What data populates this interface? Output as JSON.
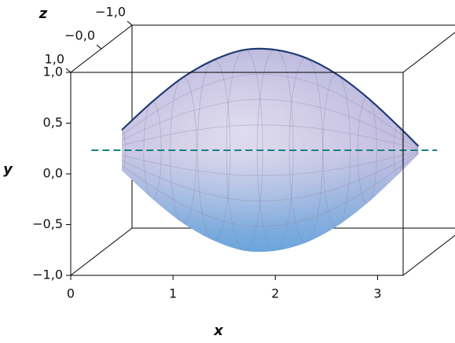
{
  "chart_data": {
    "type": "surface",
    "x_label": "x",
    "y_label": "y",
    "z_label": "z",
    "x": [
      0.2,
      0.5,
      0.8,
      1.1,
      1.4,
      1.7,
      2.0,
      2.3,
      2.6,
      2.9,
      3.1
    ],
    "values": [
      0.2,
      0.48,
      0.72,
      0.89,
      0.99,
      0.99,
      0.91,
      0.75,
      0.52,
      0.24,
      0.04
    ],
    "color": "#1f3b73",
    "xlim": [
      0,
      3.25
    ],
    "xticks": [
      0,
      1,
      2,
      3
    ],
    "ylim": [
      -1,
      1
    ],
    "yticks": [
      {
        "value": -1,
        "label": "−1,0"
      },
      {
        "value": -0.5,
        "label": "−0,5"
      },
      {
        "value": 0,
        "label": "0,0"
      },
      {
        "value": 0.5,
        "label": "0,5"
      },
      {
        "value": 1,
        "label": "1,0"
      }
    ],
    "zlim": [
      -1,
      1
    ],
    "zticks": [
      {
        "value": -1,
        "label": "−1,0"
      },
      {
        "value": 0,
        "label": "−0,0"
      },
      {
        "value": 1,
        "label": "1,0"
      }
    ]
  }
}
